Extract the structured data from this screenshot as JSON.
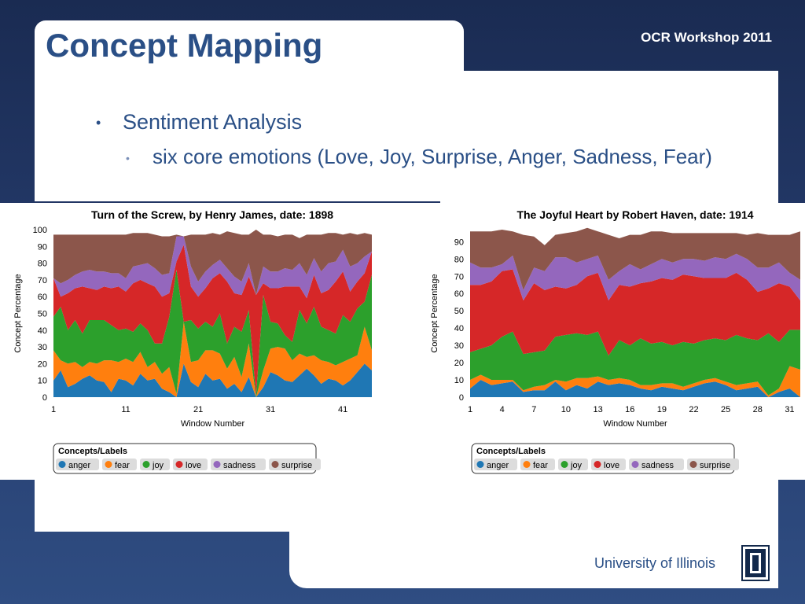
{
  "slide": {
    "title": "Concept Mapping",
    "workshop": "OCR Workshop 2011",
    "bullets": [
      {
        "level": 1,
        "text": "Sentiment Analysis"
      },
      {
        "level": 2,
        "text": "six core emotions (Love, Joy, Surprise, Anger, Sadness, Fear)"
      }
    ],
    "footer": "University of Illinois"
  },
  "colors": {
    "anger": "#1f77b4",
    "fear": "#ff7f0e",
    "joy": "#2ca02c",
    "love": "#d62728",
    "sadness": "#9467bd",
    "surprise": "#8c564b",
    "slide_blue": "#2a4f86"
  },
  "chart_data": [
    {
      "type": "area",
      "stacked": true,
      "title": "Turn of the Screw, by Henry James, date: 1898",
      "xlabel": "Window Number",
      "ylabel": "Concept Percentage",
      "ylim": [
        0,
        100
      ],
      "yticks": [
        0,
        10,
        20,
        30,
        40,
        50,
        60,
        70,
        80,
        90,
        100
      ],
      "xticks": [
        1,
        11,
        21,
        31,
        41
      ],
      "x": [
        1,
        2,
        3,
        4,
        5,
        6,
        7,
        8,
        9,
        10,
        11,
        12,
        13,
        14,
        15,
        16,
        17,
        18,
        19,
        20,
        21,
        22,
        23,
        24,
        25,
        26,
        27,
        28,
        29,
        30,
        31,
        32,
        33,
        34,
        35,
        36,
        37,
        38,
        39,
        40,
        41,
        42,
        43,
        44,
        45
      ],
      "legend_title": "Concepts/Labels",
      "series": [
        {
          "name": "anger",
          "values": [
            10,
            16,
            6,
            8,
            11,
            13,
            10,
            9,
            3,
            11,
            10,
            7,
            14,
            10,
            11,
            5,
            3,
            0,
            20,
            9,
            6,
            14,
            10,
            11,
            5,
            8,
            3,
            12,
            0,
            6,
            15,
            13,
            10,
            9,
            13,
            17,
            13,
            8,
            11,
            10,
            7,
            10,
            15,
            20,
            16
          ]
        },
        {
          "name": "fear",
          "values": [
            18,
            6,
            14,
            13,
            7,
            8,
            10,
            13,
            19,
            10,
            13,
            14,
            13,
            8,
            10,
            9,
            15,
            2,
            25,
            12,
            16,
            14,
            18,
            15,
            12,
            16,
            9,
            20,
            0,
            10,
            14,
            17,
            19,
            13,
            13,
            7,
            12,
            14,
            10,
            9,
            14,
            13,
            10,
            22,
            12
          ]
        },
        {
          "name": "joy",
          "values": [
            20,
            32,
            20,
            25,
            20,
            25,
            26,
            24,
            21,
            19,
            18,
            18,
            17,
            22,
            11,
            18,
            30,
            74,
            0,
            25,
            19,
            17,
            14,
            24,
            15,
            18,
            27,
            20,
            1,
            45,
            16,
            14,
            8,
            11,
            26,
            20,
            29,
            20,
            19,
            19,
            28,
            22,
            28,
            15,
            45
          ]
        },
        {
          "name": "love",
          "values": [
            23,
            6,
            22,
            19,
            28,
            19,
            18,
            20,
            22,
            26,
            22,
            29,
            26,
            28,
            34,
            28,
            14,
            5,
            46,
            20,
            19,
            20,
            29,
            24,
            37,
            20,
            22,
            20,
            60,
            7,
            20,
            21,
            29,
            33,
            14,
            15,
            19,
            20,
            24,
            31,
            26,
            18,
            16,
            17,
            14
          ]
        },
        {
          "name": "sadness",
          "values": [
            0,
            8,
            8,
            8,
            9,
            11,
            11,
            9,
            9,
            8,
            8,
            10,
            9,
            12,
            11,
            13,
            12,
            15,
            5,
            12,
            9,
            10,
            8,
            8,
            8,
            10,
            8,
            8,
            0,
            10,
            10,
            10,
            11,
            10,
            14,
            14,
            10,
            13,
            16,
            12,
            13,
            15,
            11,
            10,
            0
          ]
        },
        {
          "name": "surprise",
          "values": [
            26,
            29,
            27,
            24,
            22,
            21,
            22,
            22,
            23,
            23,
            26,
            20,
            19,
            18,
            20,
            23,
            22,
            1,
            0,
            19,
            28,
            22,
            19,
            15,
            22,
            26,
            28,
            17,
            39,
            19,
            22,
            21,
            20,
            21,
            15,
            24,
            14,
            22,
            18,
            17,
            9,
            20,
            17,
            14,
            10
          ]
        }
      ]
    },
    {
      "type": "area",
      "stacked": true,
      "title": "The Joyful Heart by Robert Haven, date: 1914",
      "xlabel": "Window Number",
      "ylabel": "Concept Percentage",
      "ylim": [
        0,
        97
      ],
      "yticks": [
        0,
        10,
        20,
        30,
        40,
        50,
        60,
        70,
        80,
        90
      ],
      "xticks": [
        1,
        4,
        7,
        10,
        13,
        16,
        19,
        22,
        25,
        28,
        31
      ],
      "x": [
        1,
        2,
        3,
        4,
        5,
        6,
        7,
        8,
        9,
        10,
        11,
        12,
        13,
        14,
        15,
        16,
        17,
        18,
        19,
        20,
        21,
        22,
        23,
        24,
        25,
        26,
        27,
        28,
        29,
        30,
        31,
        32
      ],
      "legend_title": "Concepts/Labels",
      "series": [
        {
          "name": "anger",
          "values": [
            5,
            10,
            7,
            8,
            9,
            3,
            4,
            4,
            9,
            4,
            7,
            5,
            9,
            7,
            8,
            7,
            5,
            4,
            6,
            5,
            4,
            6,
            8,
            9,
            7,
            4,
            5,
            6,
            0,
            3,
            5,
            0
          ]
        },
        {
          "name": "fear",
          "values": [
            5,
            3,
            3,
            2,
            1,
            1,
            2,
            3,
            1,
            5,
            4,
            6,
            3,
            3,
            3,
            3,
            2,
            3,
            2,
            3,
            2,
            2,
            2,
            2,
            2,
            3,
            3,
            3,
            1,
            2,
            13,
            16
          ]
        },
        {
          "name": "joy",
          "values": [
            16,
            15,
            20,
            25,
            28,
            21,
            20,
            20,
            25,
            27,
            26,
            25,
            26,
            14,
            22,
            20,
            27,
            24,
            24,
            22,
            26,
            23,
            23,
            23,
            24,
            29,
            26,
            24,
            36,
            27,
            21,
            23
          ]
        },
        {
          "name": "love",
          "values": [
            39,
            37,
            37,
            38,
            36,
            31,
            40,
            35,
            29,
            27,
            28,
            34,
            34,
            32,
            32,
            34,
            32,
            36,
            37,
            38,
            39,
            39,
            36,
            35,
            36,
            36,
            34,
            28,
            26,
            34,
            25,
            17
          ]
        },
        {
          "name": "sadness",
          "values": [
            13,
            10,
            8,
            4,
            8,
            6,
            9,
            11,
            17,
            18,
            13,
            10,
            10,
            12,
            8,
            13,
            8,
            10,
            11,
            10,
            9,
            10,
            10,
            12,
            11,
            11,
            12,
            14,
            12,
            12,
            8,
            12
          ]
        },
        {
          "name": "surprise",
          "values": [
            18,
            21,
            21,
            20,
            14,
            32,
            18,
            15,
            13,
            14,
            18,
            18,
            14,
            26,
            19,
            17,
            20,
            19,
            16,
            17,
            15,
            15,
            16,
            14,
            15,
            12,
            14,
            20,
            19,
            16,
            22,
            28
          ]
        }
      ]
    }
  ]
}
